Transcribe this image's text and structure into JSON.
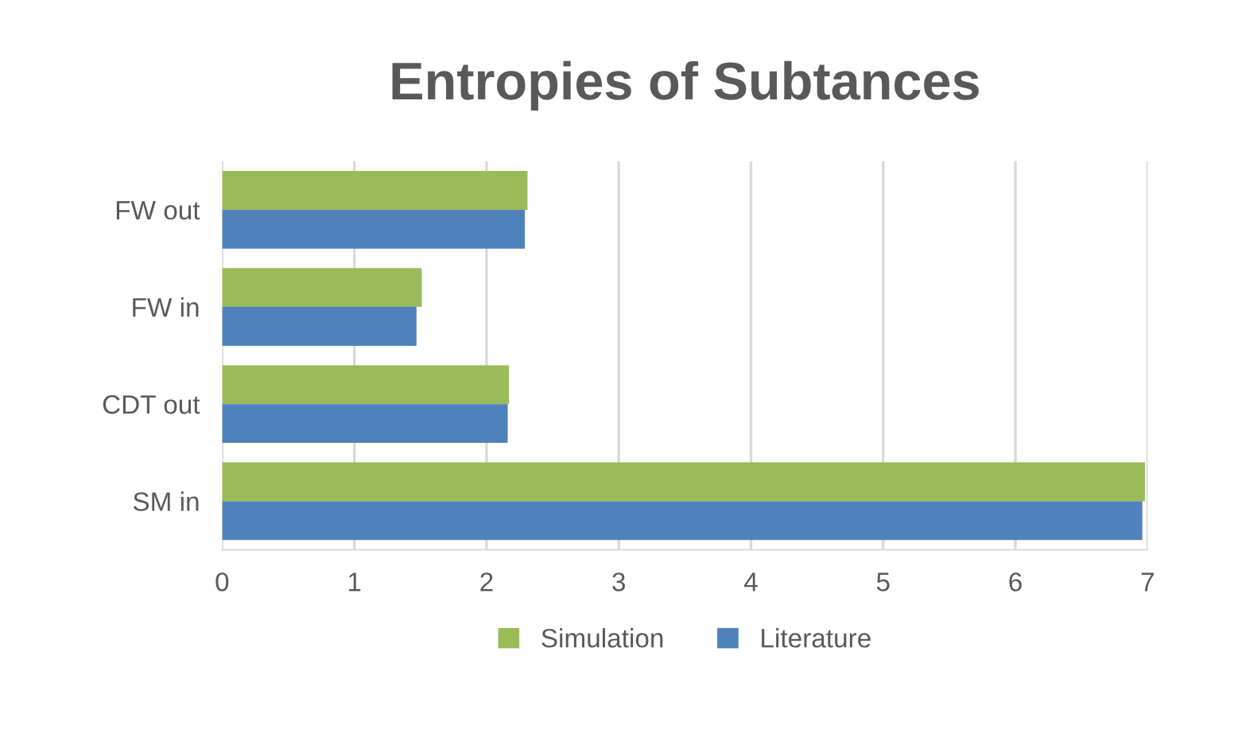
{
  "chart_data": {
    "type": "bar",
    "orientation": "horizontal",
    "title": "Entropies of Subtances",
    "categories": [
      "FW out",
      "FW in",
      "CDT out",
      "SM in"
    ],
    "series": [
      {
        "name": "Simulation",
        "color": "#9bbb59",
        "values": [
          2.31,
          1.51,
          2.17,
          6.98
        ]
      },
      {
        "name": "Literature",
        "color": "#4f81bd",
        "values": [
          2.29,
          1.47,
          2.16,
          6.96
        ]
      }
    ],
    "xlim": [
      0,
      7
    ],
    "xticks": [
      0,
      1,
      2,
      3,
      4,
      5,
      6,
      7
    ],
    "grid": "x",
    "legend": "bottom"
  }
}
